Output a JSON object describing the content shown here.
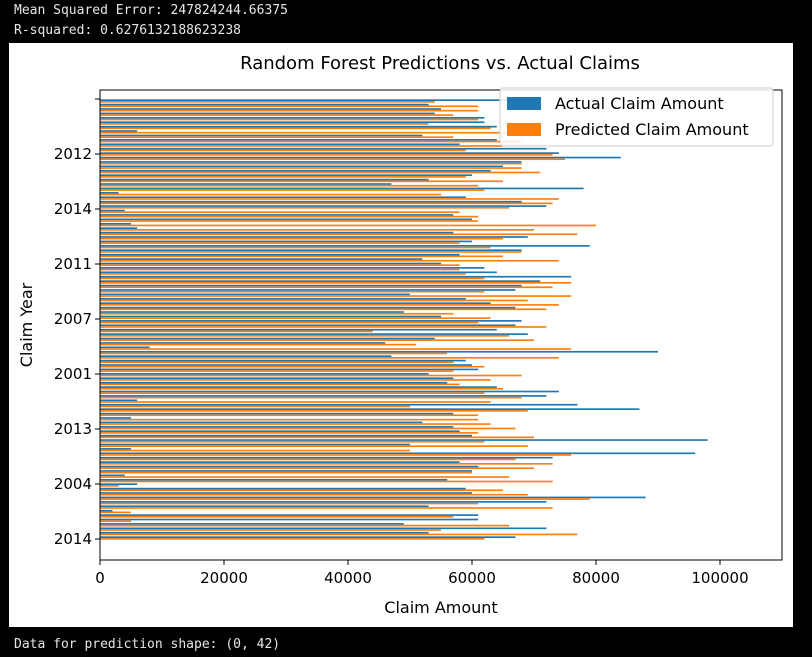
{
  "console": {
    "mse_line": "Mean Squared Error: 247824244.66375",
    "r2_line": "R-squared: 0.6276132188623238",
    "shape_line": "Data for prediction shape: (0, 42)"
  },
  "colors": {
    "actual": "#1f77b4",
    "predicted": "#ff7f0e",
    "background": "#000000"
  },
  "chart_data": {
    "type": "bar",
    "orientation": "horizontal",
    "title": "Random Forest Predictions vs. Actual Claims",
    "xlabel": "Claim Amount",
    "ylabel": "Claim Year",
    "xlim": [
      0,
      110000
    ],
    "xticks": [
      0,
      20000,
      40000,
      60000,
      80000,
      100000
    ],
    "ytick_labels": [
      "",
      "2012",
      "2014",
      "2011",
      "2007",
      "2001",
      "2013",
      "2004",
      "2014"
    ],
    "grid": false,
    "legend_position": "top-right",
    "series": [
      {
        "name": "Actual Claim Amount",
        "values": [
          67000,
          53000,
          72000,
          49000,
          61000,
          61000,
          2000,
          53000,
          72000,
          88000,
          60000,
          59000,
          6000,
          56000,
          4000,
          60000,
          61000,
          58000,
          73000,
          96000,
          5000,
          50000,
          98000,
          60000,
          58000,
          57000,
          52000,
          5000,
          57000,
          87000,
          77000,
          6000,
          72000,
          74000,
          64000,
          56000,
          57000,
          53000,
          61000,
          60000,
          59000,
          47000,
          90000,
          8000,
          46000,
          54000,
          69000,
          64000,
          67000,
          68000,
          55000,
          49000,
          67000,
          63000,
          59000,
          50000,
          67000,
          68000,
          71000,
          76000,
          64000,
          62000,
          55000,
          52000,
          58000,
          68000,
          79000,
          60000,
          69000,
          57000,
          6000,
          5000,
          60000,
          57000,
          4000,
          72000,
          68000,
          59000,
          3000,
          78000,
          47000,
          53000,
          60000,
          63000,
          65000,
          68000,
          84000,
          74000,
          72000,
          58000,
          64000,
          52000,
          6000,
          64000,
          62000,
          62000,
          54000,
          55000,
          53000,
          66000
        ]
      },
      {
        "name": "Predicted Claim Amount",
        "values": [
          62000,
          77000,
          55000,
          66000,
          5000,
          57000,
          5000,
          73000,
          61000,
          79000,
          69000,
          65000,
          3000,
          73000,
          66000,
          60000,
          70000,
          73000,
          67000,
          76000,
          50000,
          69000,
          62000,
          70000,
          61000,
          67000,
          63000,
          61000,
          61000,
          69000,
          50000,
          63000,
          68000,
          62000,
          65000,
          58000,
          63000,
          68000,
          57000,
          62000,
          57000,
          74000,
          56000,
          76000,
          51000,
          70000,
          66000,
          44000,
          72000,
          61000,
          63000,
          57000,
          72000,
          74000,
          69000,
          76000,
          62000,
          73000,
          76000,
          62000,
          59000,
          58000,
          58000,
          74000,
          65000,
          68000,
          63000,
          58000,
          65000,
          77000,
          70000,
          80000,
          61000,
          61000,
          58000,
          66000,
          73000,
          74000,
          55000,
          62000,
          61000,
          65000,
          59000,
          71000,
          68000,
          68000,
          75000,
          73000,
          59000,
          65000,
          68000,
          57000,
          67000,
          63000,
          53000,
          61000,
          57000,
          61000,
          61000,
          54000
        ]
      }
    ]
  }
}
